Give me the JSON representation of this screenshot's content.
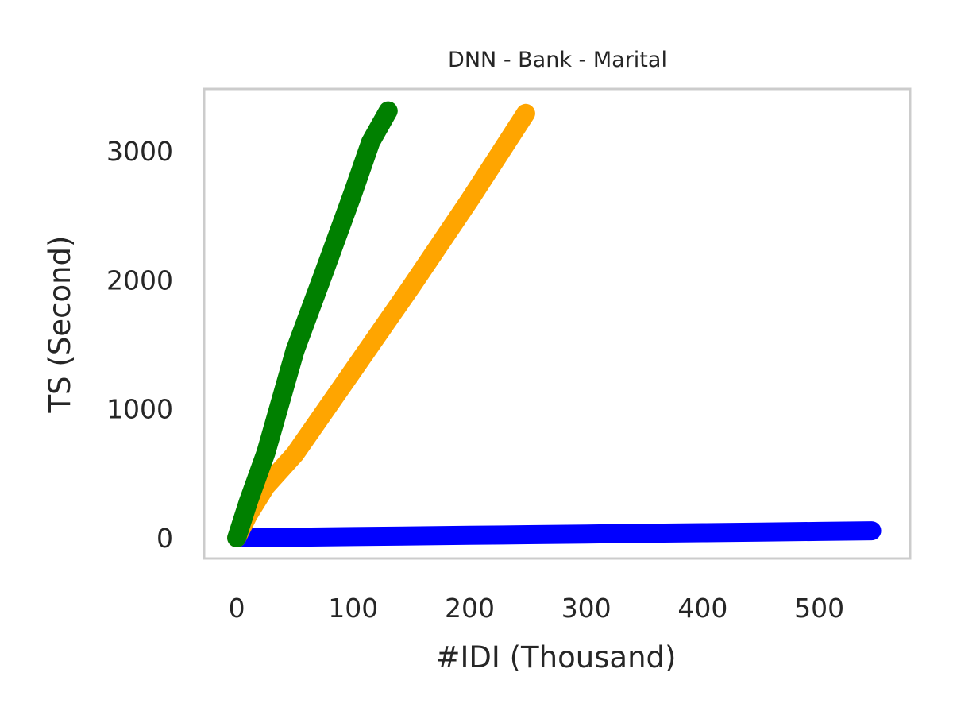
{
  "chart_data": {
    "type": "line",
    "title": "DNN - Bank - Marital",
    "xlabel": "#IDI (Thousand)",
    "ylabel": "TS (Second)",
    "xlim": [
      -28,
      578
    ],
    "ylim": [
      -160,
      3480
    ],
    "xticks": [
      0,
      100,
      200,
      300,
      400,
      500
    ],
    "yticks": [
      0,
      1000,
      2000,
      3000
    ],
    "grid": false,
    "legend": "none",
    "frame_color": "#cccccc",
    "series": [
      {
        "color": "#0000ff",
        "x": [
          0,
          50,
          100,
          150,
          200,
          250,
          300,
          350,
          400,
          450,
          500,
          545
        ],
        "y": [
          0,
          5,
          10,
          15,
          20,
          25,
          30,
          35,
          40,
          45,
          50,
          55
        ]
      },
      {
        "color": "#ffa500",
        "x": [
          0,
          10,
          25,
          50,
          100,
          150,
          200,
          248
        ],
        "y": [
          0,
          180,
          400,
          650,
          1300,
          1950,
          2620,
          3290
        ]
      },
      {
        "color": "#008000",
        "x": [
          0,
          10,
          25,
          50,
          75,
          100,
          115,
          130
        ],
        "y": [
          0,
          280,
          660,
          1450,
          2060,
          2680,
          3070,
          3310
        ]
      }
    ]
  }
}
